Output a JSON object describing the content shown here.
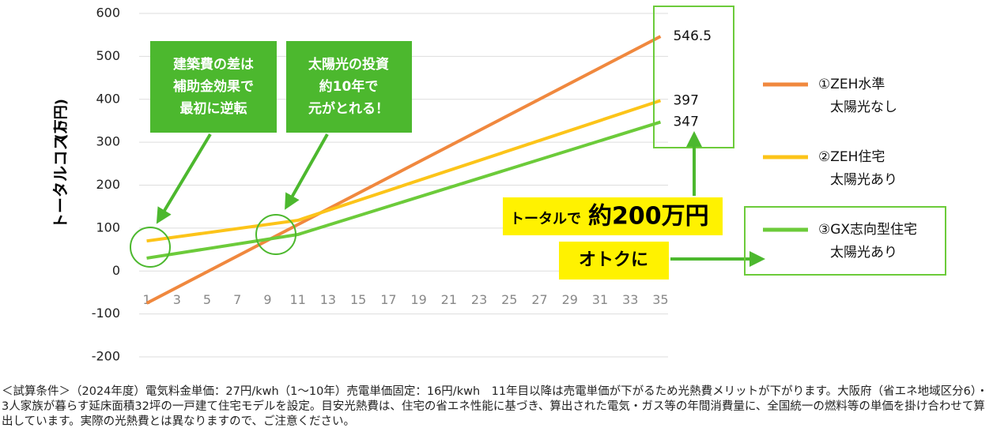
{
  "chart_data": {
    "type": "line",
    "ylabel": [
      "トータルコスト",
      "(万円)"
    ],
    "x": [
      1,
      11,
      35
    ],
    "series": [
      {
        "name": [
          "①ZEH水準",
          "太陽光なし"
        ],
        "color": "#f0883e",
        "values": [
          -75,
          108,
          546.5
        ]
      },
      {
        "name": [
          "②ZEH住宅",
          "太陽光あり"
        ],
        "color": "#fcc419",
        "values": [
          70,
          118,
          397
        ]
      },
      {
        "name": [
          "③GX志向型住宅",
          "太陽光あり"
        ],
        "color": "#6ccb3a",
        "values": [
          30,
          85,
          347
        ]
      }
    ],
    "xlim": [
      0.5,
      35.5
    ],
    "xticks": [
      1,
      3,
      5,
      7,
      9,
      11,
      13,
      15,
      17,
      19,
      21,
      23,
      25,
      27,
      29,
      31,
      33,
      35
    ],
    "ylim": [
      -200,
      600
    ],
    "yticks": [
      -200,
      -100,
      0,
      100,
      200,
      300,
      400,
      500,
      600
    ],
    "grid": true,
    "annotations": {
      "box1": [
        "建築費の差は",
        "補助金効果で",
        "最初に逆転"
      ],
      "box2": [
        "太陽光の投資",
        "約10年で",
        "元がとれる！"
      ],
      "total": [
        "トータルで",
        "約200万円"
      ],
      "gain": "オトクに"
    },
    "footnote": "＜試算条件＞（2024年度）電気料金単価：27円/kwh（1〜10年）売電単価固定：16円/kwh　11年目以降は売電単価が下がるため光熱費メリットが下がります。大阪府（省エネ地域区分6）・3人家族が暮らす延床面積32坪の一戸建て住宅モデルを設定。目安光熱費は、住宅の省エネ性能に基づき、算出された電気・ガス等の年間消費量に、全国統一の燃料等の単価を掛け合わせて算出しています。実際の光熱費とは異なりますので、ご注意ください。"
  }
}
